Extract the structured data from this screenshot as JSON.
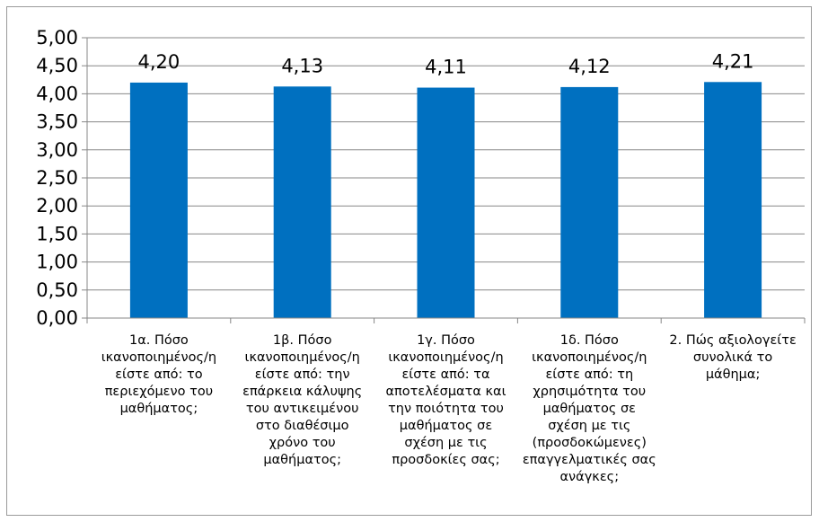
{
  "chart_data": {
    "type": "bar",
    "categories": [
      "1α. Πόσο ικανοποιημένος/η είστε από: το περιεχόμενο του μαθήματος;",
      "1β. Πόσο ικανοποιημένος/η είστε από: την επάρκεια κάλυψης του αντικειμένου στο διαθέσιμο χρόνο του μαθήματος;",
      "1γ. Πόσο ικανοποιημένος/η είστε από: τα αποτελέσματα και την ποιότητα του μαθήματος σε σχέση με τις προσδοκίες σας;",
      "1δ. Πόσο ικανοποιημένος/η είστε από: τη χρησιμότητα του μαθήματος σε σχέση με τις (προσδοκώμενες) επαγγελματικές σας ανάγκες;",
      "2. Πώς αξιολογείτε συνολικά το μάθημα;"
    ],
    "values": [
      4.2,
      4.13,
      4.11,
      4.12,
      4.21
    ],
    "value_labels": [
      "4,20",
      "4,13",
      "4,11",
      "4,12",
      "4,21"
    ],
    "ylim": [
      0,
      5
    ],
    "y_ticks": [
      "0,00",
      "0,50",
      "1,00",
      "1,50",
      "2,00",
      "2,50",
      "3,00",
      "3,50",
      "4,00",
      "4,50",
      "5,00"
    ],
    "grid": true,
    "legend": "none",
    "bar_color": "#0070C0",
    "grid_color": "#878787"
  }
}
